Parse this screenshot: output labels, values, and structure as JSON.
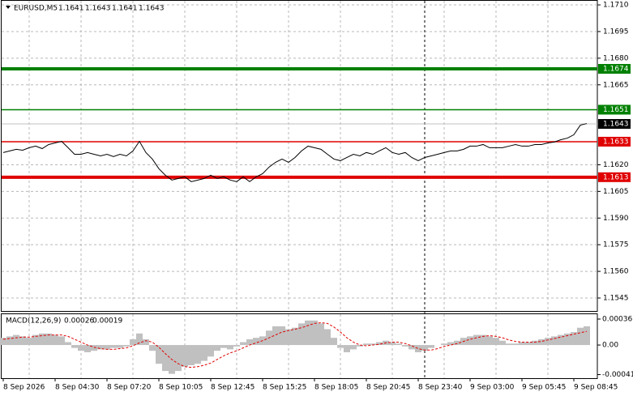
{
  "chart_data": [
    {
      "type": "line",
      "symbol": "EURUSD,M5",
      "ohlc": [
        1.1641,
        1.1643,
        1.1641,
        1.1643
      ],
      "color": "#000000",
      "categories": [
        "8 Sep 2026",
        null,
        null,
        null,
        null,
        null,
        null,
        null,
        "8 Sep 04:30",
        null,
        null,
        null,
        null,
        null,
        null,
        null,
        "8 Sep 07:20",
        null,
        null,
        null,
        null,
        null,
        null,
        null,
        "8 Sep 10:05",
        null,
        null,
        null,
        null,
        null,
        null,
        null,
        "8 Sep 12:45",
        null,
        null,
        null,
        null,
        null,
        null,
        null,
        "8 Sep 15:25",
        null,
        null,
        null,
        null,
        null,
        null,
        null,
        "8 Sep 18:05",
        null,
        null,
        null,
        null,
        null,
        null,
        null,
        "8 Sep 20:45",
        null,
        null,
        null,
        null,
        null,
        null,
        null,
        "8 Sep 23:40",
        null,
        null,
        null,
        null,
        null,
        null,
        null,
        "9 Sep 03:00",
        null,
        null,
        null,
        null,
        null,
        null,
        null,
        "9 Sep 05:45",
        null,
        null,
        null,
        null,
        null,
        null,
        null,
        "9 Sep 08:45",
        null,
        null
      ],
      "values": [
        1.16269,
        1.16278,
        1.16287,
        1.16282,
        1.16296,
        1.16305,
        1.16291,
        1.16314,
        1.16323,
        1.16332,
        1.16296,
        1.16259,
        1.16259,
        1.16269,
        1.16259,
        1.1625,
        1.16259,
        1.16246,
        1.16259,
        1.1625,
        1.16278,
        1.16332,
        1.16269,
        1.16232,
        1.16178,
        1.16141,
        1.16114,
        1.16123,
        1.16132,
        1.16105,
        1.16114,
        1.16123,
        1.16141,
        1.16123,
        1.16132,
        1.16114,
        1.16105,
        1.16132,
        1.16105,
        1.16132,
        1.1615,
        1.16187,
        1.16214,
        1.16232,
        1.16214,
        1.16241,
        1.16278,
        1.16305,
        1.16296,
        1.16287,
        1.16259,
        1.16232,
        1.16223,
        1.16241,
        1.16259,
        1.1625,
        1.16269,
        1.16259,
        1.16278,
        1.16296,
        1.16269,
        1.16259,
        1.16269,
        1.16241,
        1.16223,
        1.16241,
        1.1625,
        1.16259,
        1.16269,
        1.16278,
        1.16278,
        1.16287,
        1.16305,
        1.16305,
        1.16314,
        1.16296,
        1.16296,
        1.16296,
        1.16305,
        1.16314,
        1.16305,
        1.16305,
        1.16314,
        1.16314,
        1.16323,
        1.16328,
        1.16341,
        1.1635,
        1.16369,
        1.16423,
        1.16432
      ],
      "ylim": [
        1.15377,
        1.17123
      ],
      "yticks": [
        {
          "value": 1.171,
          "label": "1.1710"
        },
        1.1695,
        {
          "value": 1.168,
          "label": "1.1680"
        },
        1.1665,
        {
          "value": 1.162,
          "label": "1.1620"
        },
        1.1605,
        {
          "value": 1.159,
          "label": "1.1590"
        },
        1.1575,
        {
          "value": 1.156,
          "label": "1.1560"
        },
        1.1545
      ],
      "levels": [
        {
          "value": 1.1674,
          "color": "#008000",
          "thick": true
        },
        {
          "value": 1.1651,
          "color": "#008000",
          "thick": false
        },
        {
          "value": 1.1633,
          "color": "#e00000",
          "thick": false
        },
        {
          "value": 1.1613,
          "color": "#e00000",
          "thick": true
        }
      ],
      "last_price": 1.1643,
      "period_separator": "8 Sep 23:40",
      "grid": true
    },
    {
      "type": "macd",
      "title": "MACD(12,26,9)",
      "color": "#c0c0c0",
      "signal_color": "#e00000",
      "histogram": [
        0.0001,
        0.00012,
        0.00014,
        0.00012,
        0.0001,
        0.00014,
        0.00016,
        0.00016,
        0.00014,
        0.00012,
        4e-05,
        -4e-05,
        -8e-05,
        -0.0001,
        -8e-05,
        -6e-05,
        -6e-05,
        -4e-05,
        -4e-05,
        -2e-05,
        8e-05,
        0.00016,
        8e-05,
        -8e-05,
        -0.00026,
        -0.00036,
        -0.0004,
        -0.00036,
        -0.0003,
        -0.00028,
        -0.00026,
        -0.00022,
        -0.00016,
        -8e-05,
        -4e-05,
        -6e-05,
        -2e-05,
        4e-05,
        8e-05,
        0.0001,
        0.00012,
        0.0002,
        0.00026,
        0.00026,
        0.00022,
        0.00024,
        0.0003,
        0.00034,
        0.00034,
        0.0003,
        0.00022,
        0.0001,
        -4e-05,
        -0.0001,
        -6e-05,
        -2e-05,
        2e-05,
        2e-05,
        4e-05,
        6e-05,
        4e-05,
        2e-05,
        -2e-05,
        -6e-05,
        -0.0001,
        -8e-05,
        -4e-05,
        0,
        2e-05,
        4e-05,
        6e-05,
        0.0001,
        0.00012,
        0.00014,
        0.00014,
        0.00012,
        0.0001,
        6e-05,
        2e-05,
        2e-05,
        4e-05,
        4e-05,
        6e-05,
        8e-05,
        0.0001,
        0.00012,
        0.00014,
        0.00016,
        0.00018,
        0.00024,
        0.00026
      ],
      "signal": [
        8e-05,
        9e-05,
        0.0001,
        0.00011,
        0.00011,
        0.00012,
        0.00013,
        0.00014,
        0.00014,
        0.00014,
        0.00012,
        8e-05,
        4e-05,
        0,
        -3e-05,
        -5e-05,
        -6e-05,
        -6e-05,
        -5e-05,
        -4e-05,
        -1e-05,
        3e-05,
        6e-05,
        4e-05,
        -3e-05,
        -0.00012,
        -0.0002,
        -0.00026,
        -0.0003,
        -0.00031,
        -0.0003,
        -0.00028,
        -0.00025,
        -0.0002,
        -0.00015,
        -0.00011,
        -8e-05,
        -4e-05,
        0,
        3e-05,
        6e-05,
        0.0001,
        0.00014,
        0.00018,
        0.0002,
        0.00022,
        0.00024,
        0.00027,
        0.0003,
        0.00031,
        0.0003,
        0.00025,
        0.00018,
        0.0001,
        4e-05,
        0,
        -1e-05,
        0,
        1e-05,
        3e-05,
        4e-05,
        4e-05,
        2e-05,
        -1e-05,
        -5e-05,
        -7e-05,
        -7e-05,
        -5e-05,
        -2e-05,
        0,
        2e-05,
        5e-05,
        8e-05,
        0.0001,
        0.00012,
        0.00013,
        0.00012,
        0.0001,
        7e-05,
        5e-05,
        4e-05,
        4e-05,
        4e-05,
        5e-05,
        7e-05,
        9e-05,
        0.00011,
        0.00013,
        0.00015,
        0.00017,
        0.00019
      ],
      "ylim": [
        -0.00046,
        0.0004275
      ],
      "yticks": [
        0.00036,
        {
          "value": 0,
          "label": "0.00"
        },
        -0.00041
      ]
    }
  ]
}
